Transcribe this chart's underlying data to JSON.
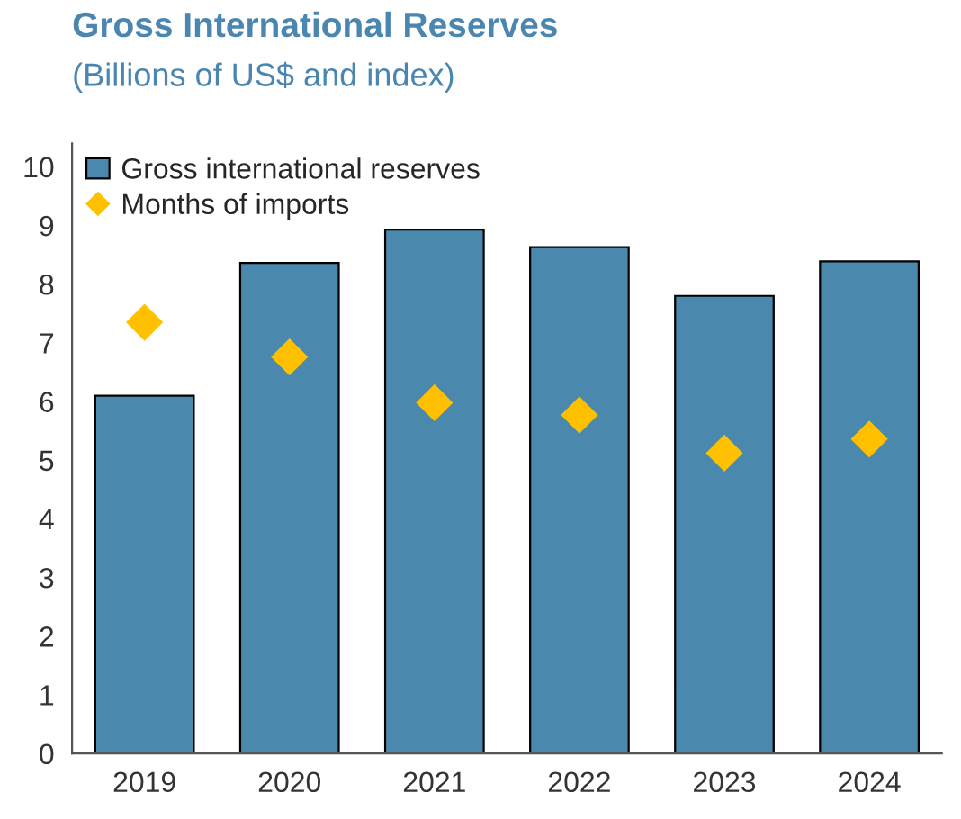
{
  "chart_data": {
    "type": "bar",
    "title": "Gross International Reserves",
    "subtitle": "(Billions of US$ and index)",
    "categories": [
      "2019",
      "2020",
      "2021",
      "2022",
      "2023",
      "2024"
    ],
    "series": [
      {
        "name": "Gross international reserves",
        "color": "#4a89ad",
        "values": [
          6.1,
          8.36,
          8.93,
          8.63,
          7.8,
          8.39
        ]
      },
      {
        "name": "Months of imports",
        "type": "scatter",
        "color": "#ffc000",
        "marker": "diamond",
        "values": [
          7.35,
          6.76,
          5.98,
          5.77,
          5.12,
          5.36
        ]
      }
    ],
    "ylim": [
      0,
      10.4
    ],
    "yticks": [
      0,
      1,
      2,
      3,
      4,
      5,
      6,
      7,
      8,
      9,
      10
    ],
    "grid": false,
    "legend": "top left"
  }
}
